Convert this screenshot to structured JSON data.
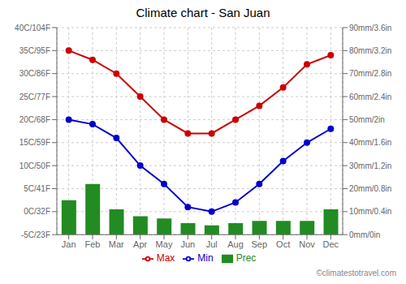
{
  "chart_data": {
    "type": "bar",
    "title": "Climate chart - San Juan",
    "categories": [
      "Jan",
      "Feb",
      "Mar",
      "Apr",
      "May",
      "Jun",
      "Jul",
      "Aug",
      "Sep",
      "Oct",
      "Nov",
      "Dec"
    ],
    "series": [
      {
        "name": "Prec",
        "type": "bar",
        "axis": "y2",
        "color": "#228B22",
        "values": [
          15,
          22,
          11,
          8,
          7,
          5,
          4,
          5,
          6,
          6,
          6,
          11
        ]
      },
      {
        "name": "Min",
        "type": "line",
        "marker": "circle",
        "color": "#0000cc",
        "values": [
          20,
          19,
          16,
          10,
          6,
          1,
          0,
          2,
          6,
          11,
          15,
          18
        ]
      },
      {
        "name": "Max",
        "type": "line",
        "marker": "circle",
        "color": "#cc0000",
        "values": [
          35,
          33,
          30,
          25,
          20,
          17,
          17,
          20,
          23,
          27,
          32,
          34
        ]
      }
    ],
    "ylim": [
      -5,
      40
    ],
    "yticks": [
      {
        "value": -5,
        "label": "-5C/23F"
      },
      {
        "value": 0,
        "label": "0C/32F"
      },
      {
        "value": 5,
        "label": "5C/41F"
      },
      {
        "value": 10,
        "label": "10C/50F"
      },
      {
        "value": 15,
        "label": "15C/59F"
      },
      {
        "value": 20,
        "label": "20C/68F"
      },
      {
        "value": 25,
        "label": "25C/77F"
      },
      {
        "value": 30,
        "label": "30C/86F"
      },
      {
        "value": 35,
        "label": "35C/95F"
      },
      {
        "value": 40,
        "label": "40C/104F"
      }
    ],
    "y2lim": [
      0,
      90
    ],
    "y2ticks": [
      {
        "value": 0,
        "label": "0mm/0in"
      },
      {
        "value": 10,
        "label": "10mm/0.4in"
      },
      {
        "value": 20,
        "label": "20mm/0.8in"
      },
      {
        "value": 30,
        "label": "30mm/1.2in"
      },
      {
        "value": 40,
        "label": "40mm/1.6in"
      },
      {
        "value": 50,
        "label": "50mm/2in"
      },
      {
        "value": 60,
        "label": "60mm/2.4in"
      },
      {
        "value": 70,
        "label": "70mm/2.8in"
      },
      {
        "value": 80,
        "label": "80mm/3.2in"
      },
      {
        "value": 90,
        "label": "90mm/3.6in"
      }
    ],
    "grid": true,
    "legend": "bottom",
    "annotations": [
      "©climatestotravel.com"
    ]
  }
}
